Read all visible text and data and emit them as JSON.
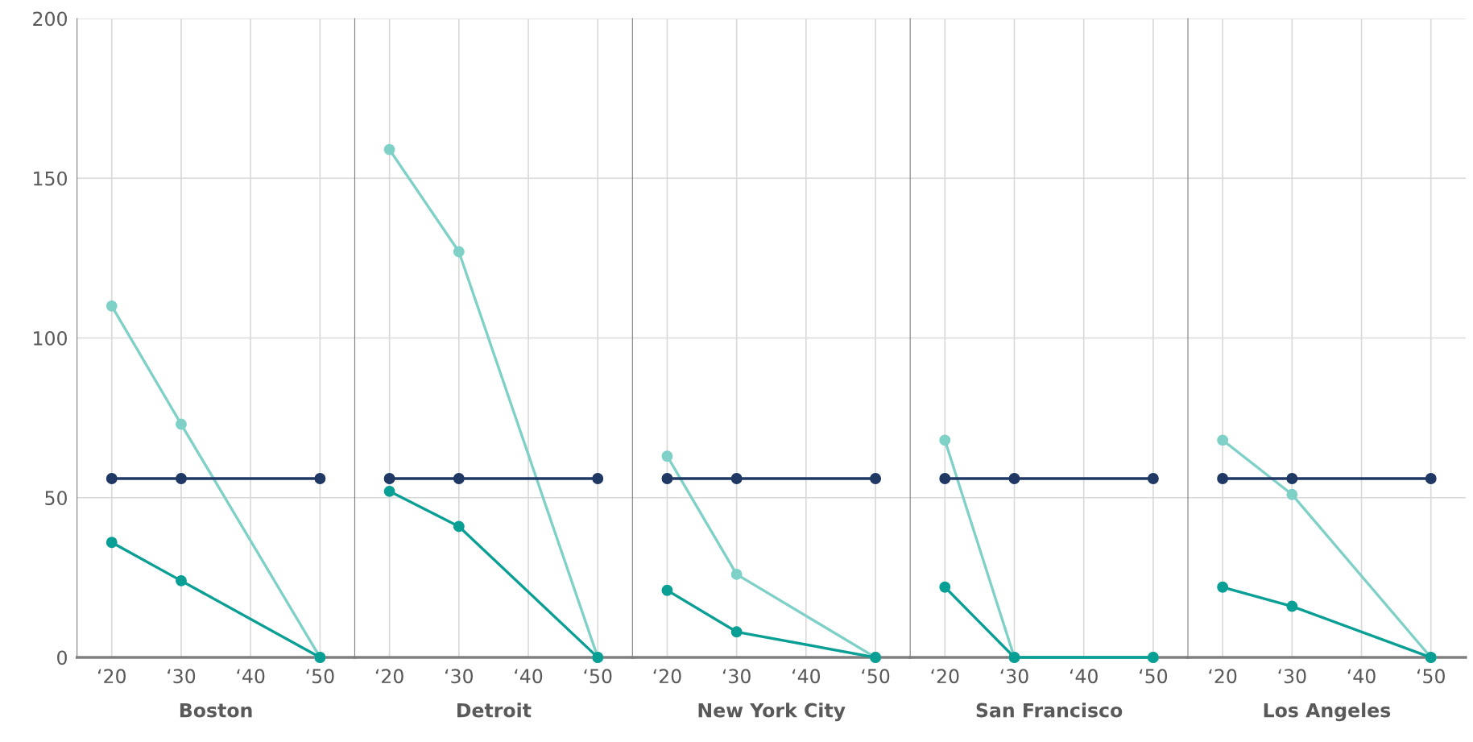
{
  "chart_data": [
    {
      "type": "line",
      "xlabel": "Boston",
      "xlim": [
        15,
        55
      ],
      "xticks": [
        {
          "value": 20,
          "label": "‘20"
        },
        {
          "value": 30,
          "label": "‘30"
        },
        {
          "value": 40,
          "label": "‘40"
        },
        {
          "value": 50,
          "label": "‘50"
        }
      ],
      "ylim": [
        0,
        200
      ],
      "yticks": [
        0,
        50,
        100,
        150,
        200
      ],
      "grid": true,
      "marker": "circle",
      "x": [
        20,
        30,
        50
      ],
      "series": [
        {
          "color": "#7fd1c8",
          "values": [
            110,
            73,
            0
          ]
        },
        {
          "color": "#1f3864",
          "values": [
            56,
            56,
            56
          ]
        },
        {
          "color": "#0a9f95",
          "values": [
            36,
            24,
            0
          ]
        }
      ]
    },
    {
      "type": "line",
      "xlabel": "Detroit",
      "xlim": [
        15,
        55
      ],
      "xticks": [
        {
          "value": 20,
          "label": "‘20"
        },
        {
          "value": 30,
          "label": "‘30"
        },
        {
          "value": 40,
          "label": "‘40"
        },
        {
          "value": 50,
          "label": "‘50"
        }
      ],
      "ylim": [
        0,
        200
      ],
      "yticks": [
        0,
        50,
        100,
        150,
        200
      ],
      "grid": true,
      "marker": "circle",
      "tick_labels": "x",
      "x": [
        20,
        30,
        50
      ],
      "series": [
        {
          "color": "#7fd1c8",
          "values": [
            159,
            127,
            0
          ]
        },
        {
          "color": "#1f3864",
          "values": [
            56,
            56,
            56
          ]
        },
        {
          "color": "#0a9f95",
          "values": [
            52,
            41,
            0
          ]
        }
      ]
    },
    {
      "type": "line",
      "xlabel": "New York City",
      "xlim": [
        15,
        55
      ],
      "xticks": [
        {
          "value": 20,
          "label": "‘20"
        },
        {
          "value": 30,
          "label": "‘30"
        },
        {
          "value": 40,
          "label": "‘40"
        },
        {
          "value": 50,
          "label": "‘50"
        }
      ],
      "ylim": [
        0,
        200
      ],
      "yticks": [
        0,
        50,
        100,
        150,
        200
      ],
      "grid": true,
      "marker": "circle",
      "tick_labels": "x",
      "x": [
        20,
        30,
        50
      ],
      "series": [
        {
          "color": "#7fd1c8",
          "values": [
            63,
            26,
            0
          ]
        },
        {
          "color": "#1f3864",
          "values": [
            56,
            56,
            56
          ]
        },
        {
          "color": "#0a9f95",
          "values": [
            21,
            8,
            0
          ]
        }
      ]
    },
    {
      "type": "line",
      "xlabel": "San Francisco",
      "xlim": [
        15,
        55
      ],
      "xticks": [
        {
          "value": 20,
          "label": "‘20"
        },
        {
          "value": 30,
          "label": "‘30"
        },
        {
          "value": 40,
          "label": "‘40"
        },
        {
          "value": 50,
          "label": "‘50"
        }
      ],
      "ylim": [
        0,
        200
      ],
      "yticks": [
        0,
        50,
        100,
        150,
        200
      ],
      "grid": true,
      "marker": "circle",
      "tick_labels": "x",
      "x": [
        20,
        30,
        50
      ],
      "series": [
        {
          "color": "#7fd1c8",
          "values": [
            68,
            0,
            0
          ]
        },
        {
          "color": "#1f3864",
          "values": [
            56,
            56,
            56
          ]
        },
        {
          "color": "#0a9f95",
          "values": [
            22,
            0,
            0
          ]
        }
      ]
    },
    {
      "type": "line",
      "xlabel": "Los Angeles",
      "xlim": [
        15,
        55
      ],
      "xticks": [
        {
          "value": 20,
          "label": "‘20"
        },
        {
          "value": 30,
          "label": "‘30"
        },
        {
          "value": 40,
          "label": "‘40"
        },
        {
          "value": 50,
          "label": "‘50"
        }
      ],
      "ylim": [
        0,
        200
      ],
      "yticks": [
        0,
        50,
        100,
        150,
        200
      ],
      "grid": true,
      "marker": "circle",
      "tick_labels": "x",
      "x": [
        20,
        30,
        50
      ],
      "series": [
        {
          "color": "#7fd1c8",
          "values": [
            68,
            51,
            0
          ]
        },
        {
          "color": "#1f3864",
          "values": [
            56,
            56,
            56
          ]
        },
        {
          "color": "#0a9f95",
          "values": [
            22,
            16,
            0
          ]
        }
      ]
    }
  ]
}
